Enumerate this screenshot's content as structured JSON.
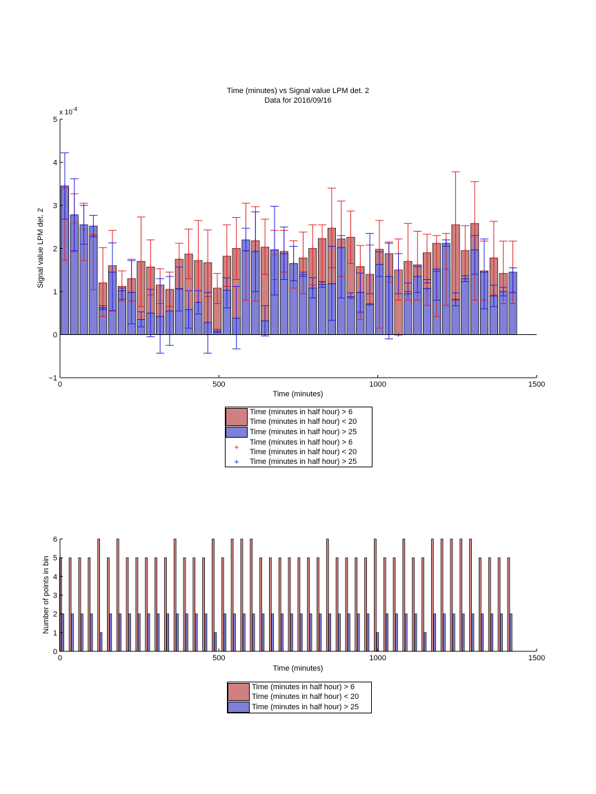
{
  "colors": {
    "red_bar": "#d08080",
    "blue_bar": "#8080d8",
    "red_err": "#e02020",
    "blue_err": "#2020e0"
  },
  "chart_data": [
    {
      "type": "bar",
      "title": "Time (minutes) vs Signal value LPM det. 2",
      "subtitle": "Data for 2016/09/16",
      "xlabel": "Time (minutes)",
      "ylabel": "Signal value LPM det. 2",
      "y_exponent_label": "x 10",
      "y_exponent_power": "-4",
      "xlim": [
        0,
        1500
      ],
      "ylim": [
        -1,
        5
      ],
      "x_ticks": [
        0,
        500,
        1000,
        1500
      ],
      "y_ticks": [
        -1,
        0,
        1,
        2,
        3,
        4,
        5
      ],
      "x": [
        15,
        45,
        75,
        105,
        135,
        165,
        195,
        225,
        255,
        285,
        315,
        345,
        375,
        405,
        435,
        465,
        495,
        525,
        555,
        585,
        615,
        645,
        675,
        705,
        735,
        765,
        795,
        825,
        855,
        885,
        915,
        945,
        975,
        1005,
        1035,
        1065,
        1095,
        1125,
        1155,
        1185,
        1215,
        1245,
        1275,
        1305,
        1335,
        1365,
        1395,
        1425
      ],
      "series": [
        {
          "name": "Time (minutes in half hour) > 6 Time (minutes in half hour) < 20",
          "values": [
            3.45,
            2.6,
            2.45,
            2.3,
            1.2,
            1.6,
            1.12,
            1.3,
            1.7,
            1.57,
            1.15,
            1.05,
            1.75,
            1.87,
            1.72,
            1.67,
            1.08,
            1.82,
            2.0,
            1.93,
            2.18,
            2.03,
            1.85,
            1.93,
            1.65,
            1.78,
            2.0,
            2.23,
            2.47,
            2.22,
            2.26,
            1.58,
            1.4,
            1.98,
            1.88,
            1.5,
            1.7,
            1.62,
            1.9,
            2.12,
            1.52,
            2.55,
            1.95,
            2.58,
            1.48,
            1.78,
            1.42,
            1.0
          ],
          "err_low": [
            1.72,
            1.92,
            1.72,
            1.04,
            0.42,
            0.56,
            0.78,
            0.78,
            0.65,
            0.92,
            0.72,
            0.65,
            1.05,
            1.3,
            0.75,
            0.88,
            0.72,
            1.12,
            1.28,
            0.8,
            0.78,
            1.4,
            1.28,
            1.45,
            1.08,
            0.95,
            1.15,
            1.22,
            1.55,
            1.35,
            1.65,
            0.35,
            0.72,
            0.15,
            1.22,
            0.8,
            0.8,
            0.8,
            0.68,
            0.42,
            0.68,
            0.8,
            1.37,
            0.8,
            0.8,
            0.92,
            0.72,
            0.72
          ],
          "err_high": [
            3.4,
            3.27,
            3.05,
            2.32,
            2.02,
            2.42,
            1.48,
            1.75,
            2.73,
            2.2,
            1.53,
            1.45,
            2.12,
            2.45,
            2.65,
            2.43,
            1.42,
            2.55,
            2.72,
            3.05,
            2.97,
            2.68,
            2.42,
            2.42,
            2.18,
            2.38,
            2.55,
            2.55,
            3.4,
            3.1,
            2.87,
            2.07,
            2.08,
            2.65,
            2.15,
            2.22,
            2.58,
            2.4,
            2.33,
            2.3,
            2.35,
            3.78,
            2.53,
            3.55,
            2.17,
            2.63,
            2.17,
            2.17
          ]
        },
        {
          "name": "Time (minutes in half hour) > 25",
          "values": [
            3.45,
            2.78,
            2.55,
            2.52,
            0.62,
            1.45,
            1.02,
            0.98,
            0.35,
            0.5,
            0.42,
            0.55,
            1.07,
            0.58,
            0.75,
            0.28,
            0.08,
            1.03,
            0.38,
            2.2,
            1.93,
            0.32,
            1.97,
            1.88,
            1.65,
            1.4,
            1.08,
            1.17,
            1.18,
            2.02,
            0.88,
            0.98,
            0.7,
            1.63,
            1.35,
            0.0,
            0.95,
            1.35,
            1.07,
            1.52,
            2.12,
            0.82,
            1.3,
            1.97,
            1.45,
            0.9,
            1.0,
            1.45
          ],
          "err_low": [
            2.68,
            1.95,
            2.1,
            2.27,
            0.58,
            0.55,
            0.82,
            0.25,
            0.18,
            -0.05,
            -0.43,
            -0.25,
            0.55,
            0.15,
            0.48,
            -0.43,
            0.05,
            0.62,
            -0.33,
            1.95,
            1.0,
            -0.03,
            0.92,
            1.28,
            1.25,
            1.35,
            0.85,
            1.1,
            0.33,
            0.85,
            0.85,
            0.52,
            0.95,
            1.35,
            -0.1,
            0.95,
            1.2,
            0.98,
            1.28,
            0.8,
            2.05,
            0.67,
            1.23,
            1.4,
            0.6,
            0.65,
            0.9,
            0.97
          ],
          "err_high": [
            4.22,
            3.62,
            3.0,
            2.77,
            0.67,
            2.13,
            1.08,
            1.72,
            0.53,
            1.05,
            1.3,
            1.35,
            1.57,
            1.02,
            1.02,
            0.98,
            0.12,
            1.32,
            1.12,
            2.47,
            2.85,
            0.67,
            2.98,
            2.5,
            2.05,
            1.45,
            1.32,
            1.23,
            2.05,
            2.3,
            0.97,
            1.43,
            2.35,
            1.92,
            2.12,
            1.88,
            1.0,
            1.58,
            1.2,
            1.47,
            2.2,
            0.97,
            1.37,
            2.3,
            2.22,
            1.15,
            1.1,
            1.55
          ]
        }
      ],
      "legend": [
        "Time (minutes in half hour) > 6",
        "Time (minutes in half hour) < 20",
        "Time (minutes in half hour) > 25",
        "Time (minutes in half hour) > 6",
        "Time (minutes in half hour) < 20",
        "Time (minutes in half hour) > 25"
      ],
      "grid": false
    },
    {
      "type": "bar",
      "xlabel": "Time (minutes)",
      "ylabel": "Number of points in bin",
      "xlim": [
        0,
        1500
      ],
      "ylim": [
        0,
        6
      ],
      "x_ticks": [
        0,
        500,
        1000,
        1500
      ],
      "y_ticks": [
        0,
        1,
        2,
        3,
        4,
        5,
        6
      ],
      "x": [
        15,
        45,
        75,
        105,
        135,
        165,
        195,
        225,
        255,
        285,
        315,
        345,
        375,
        405,
        435,
        465,
        495,
        525,
        555,
        585,
        615,
        645,
        675,
        705,
        735,
        765,
        795,
        825,
        855,
        885,
        915,
        945,
        975,
        1005,
        1035,
        1065,
        1095,
        1125,
        1155,
        1185,
        1215,
        1245,
        1275,
        1305,
        1335,
        1365,
        1395,
        1425
      ],
      "series": [
        {
          "name": "Time (minutes in half hour) > 6 Time (minutes in half hour) < 20",
          "values": [
            5,
            5,
            5,
            5,
            6,
            5,
            6,
            5,
            5,
            5,
            5,
            5,
            6,
            5,
            5,
            5,
            6,
            5,
            6,
            6,
            6,
            5,
            5,
            5,
            5,
            5,
            5,
            5,
            6,
            5,
            5,
            5,
            5,
            6,
            5,
            5,
            6,
            5,
            5,
            6,
            6,
            6,
            6,
            6,
            5,
            5,
            5,
            5
          ]
        },
        {
          "name": "Time (minutes in half hour) > 25",
          "values": [
            2,
            2,
            2,
            2,
            1,
            2,
            2,
            2,
            2,
            2,
            2,
            2,
            2,
            2,
            2,
            2,
            1,
            2,
            2,
            2,
            2,
            2,
            2,
            2,
            2,
            2,
            2,
            2,
            2,
            2,
            2,
            2,
            2,
            1,
            2,
            2,
            2,
            2,
            1,
            2,
            2,
            2,
            2,
            2,
            2,
            2,
            2,
            2
          ]
        }
      ],
      "legend": [
        "Time (minutes in half hour) > 6",
        "Time (minutes in half hour) < 20",
        "Time (minutes in half hour) > 25"
      ],
      "grid": false
    }
  ]
}
